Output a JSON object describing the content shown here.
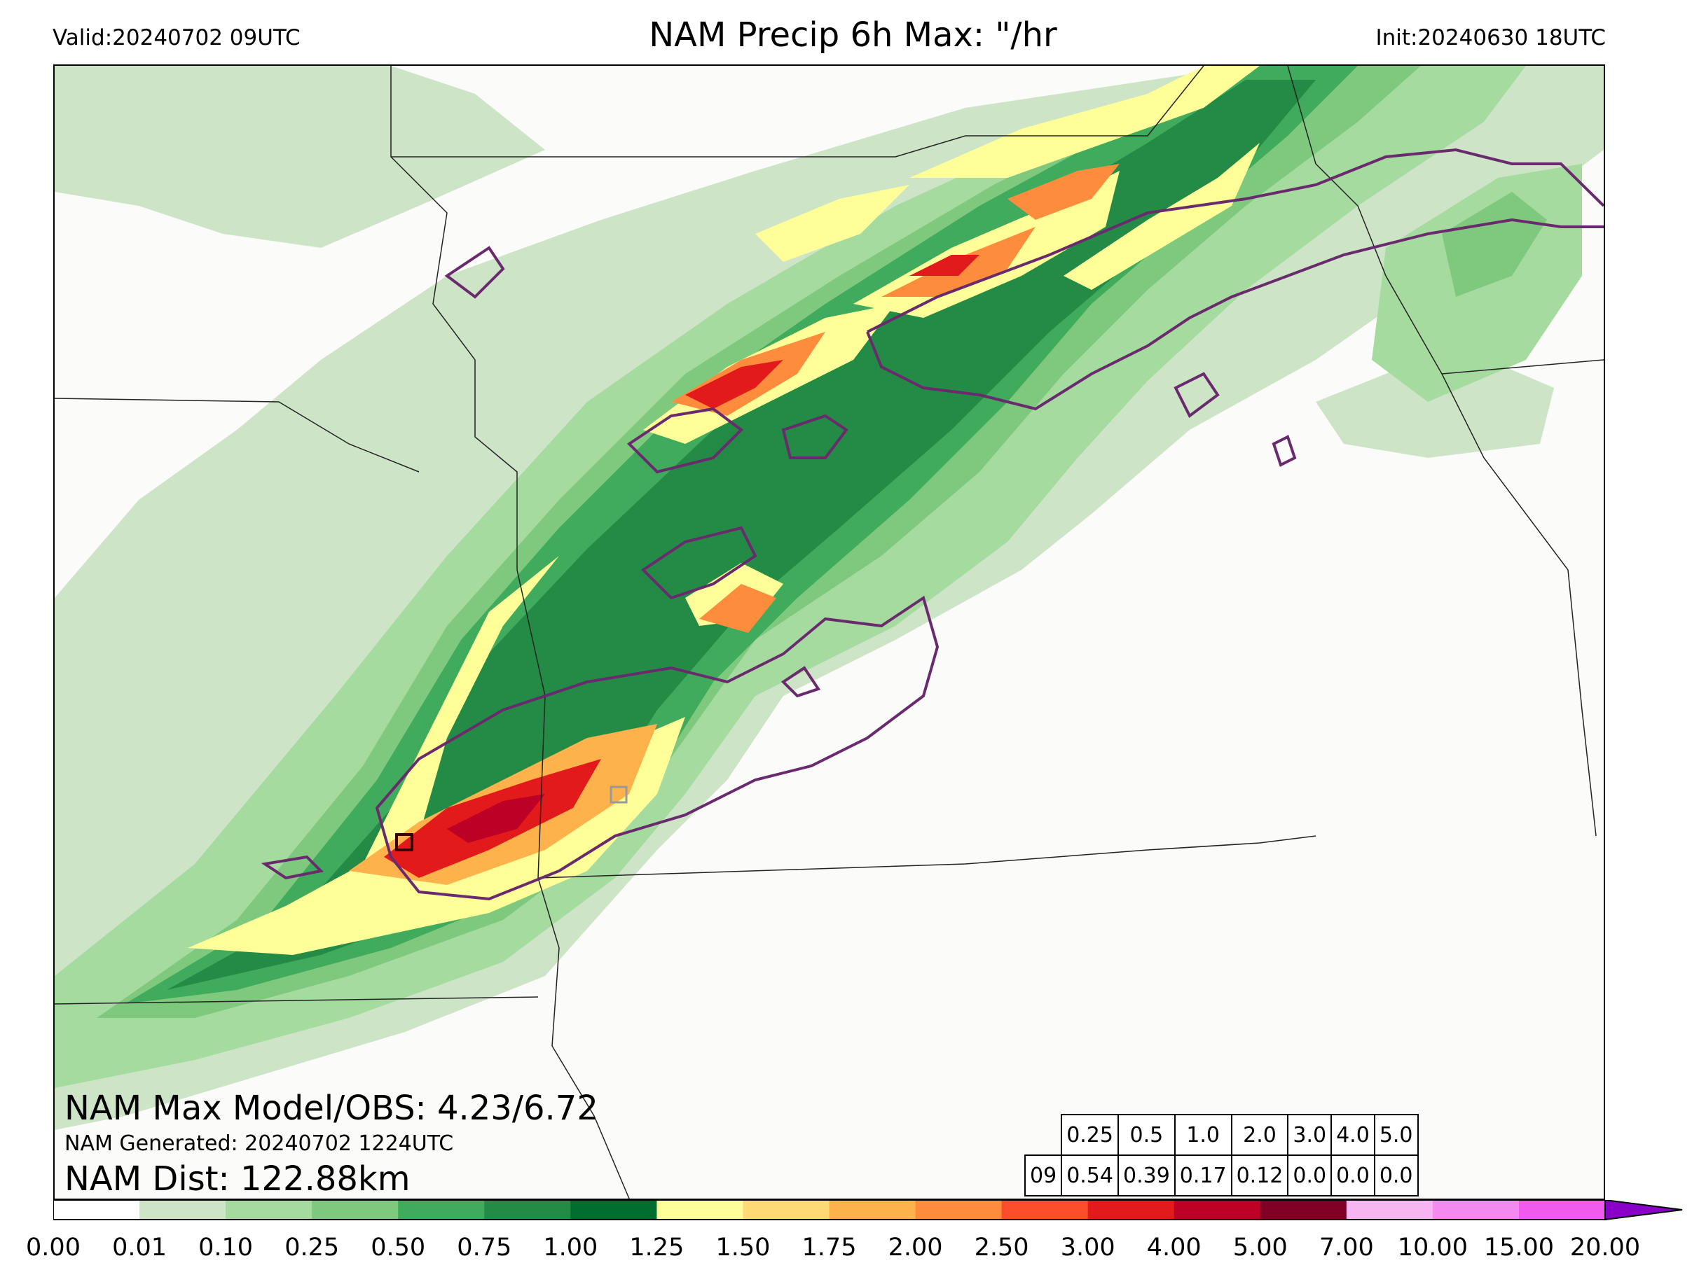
{
  "header": {
    "valid": "Valid:20240702 09UTC",
    "title": "NAM Precip 6h Max: \"/hr",
    "init": "Init:20240630 18UTC"
  },
  "info": {
    "max_line": "NAM Max Model/OBS: 4.23/6.72",
    "generated": "NAM Generated: 20240702 1224UTC",
    "dist": "NAM Dist: 122.88km"
  },
  "stats_table": {
    "thresholds": [
      "0.25",
      "0.5",
      "1.0",
      "2.0",
      "3.0",
      "4.0",
      "5.0"
    ],
    "row_label": "09",
    "values": [
      "0.54",
      "0.39",
      "0.17",
      "0.12",
      "0.0",
      "0.0",
      "0.0"
    ]
  },
  "colorbar": {
    "levels": [
      "0.00",
      "0.01",
      "0.10",
      "0.25",
      "0.50",
      "0.75",
      "1.00",
      "1.25",
      "1.50",
      "1.75",
      "2.00",
      "2.50",
      "3.00",
      "4.00",
      "5.00",
      "7.00",
      "10.00",
      "15.00",
      "20.00"
    ],
    "colors": [
      "#ffffff",
      "#cde5c6",
      "#a6dba0",
      "#7fc97f",
      "#41ab5d",
      "#238b45",
      "#006d2c",
      "#ffff99",
      "#fed976",
      "#feb24c",
      "#fd8d3c",
      "#fc4e2a",
      "#e31a1c",
      "#bd0026",
      "#800026",
      "#f7b6f2",
      "#f48af0",
      "#f05bee",
      "#e020e8",
      "#a010d0"
    ],
    "extend_color": "#8a00c8"
  },
  "palette": {
    "contour": "#6a2a6e",
    "border": "#222222",
    "obs_box": "#3a0000"
  }
}
